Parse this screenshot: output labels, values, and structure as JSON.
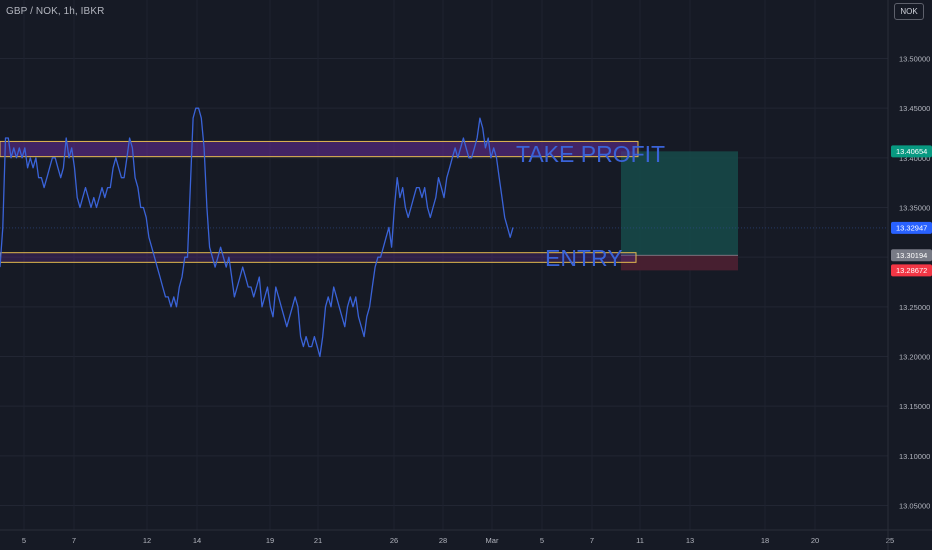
{
  "header": {
    "symbol": "GBP / NOK, 1h, IBKR",
    "currency": "NOK"
  },
  "colors": {
    "background": "#161a25",
    "price_line": "#3a63d8",
    "zone_border": "#e2b94f",
    "zone_fill": "#5a2a85",
    "profit_fill": "#164b4a",
    "loss_fill": "#4a2030",
    "tag_green": "#089981",
    "tag_blue": "#2962ff",
    "tag_gray": "#787b86",
    "tag_red": "#f23645"
  },
  "chart_data": {
    "type": "line",
    "series": [
      {
        "values": [
          13.29,
          13.33,
          13.42,
          13.42,
          13.4,
          13.41,
          13.4,
          13.41,
          13.4,
          13.41,
          13.39,
          13.4,
          13.39,
          13.4,
          13.38,
          13.38,
          13.37,
          13.38,
          13.39,
          13.4,
          13.4,
          13.39,
          13.38,
          13.39,
          13.42,
          13.4,
          13.41,
          13.39,
          13.36,
          13.35,
          13.36,
          13.37,
          13.36,
          13.35,
          13.36,
          13.35,
          13.36,
          13.37,
          13.36,
          13.37,
          13.37,
          13.39,
          13.4,
          13.39,
          13.38,
          13.38,
          13.4,
          13.42,
          13.41,
          13.38,
          13.37,
          13.35,
          13.35,
          13.34,
          13.32,
          13.31,
          13.3,
          13.29,
          13.28,
          13.27,
          13.26,
          13.26,
          13.25,
          13.26,
          13.25,
          13.27,
          13.28,
          13.3,
          13.3,
          13.37,
          13.44,
          13.45,
          13.45,
          13.44,
          13.41,
          13.35,
          13.31,
          13.3,
          13.29,
          13.3,
          13.31,
          13.3,
          13.29,
          13.3,
          13.28,
          13.26,
          13.27,
          13.28,
          13.29,
          13.28,
          13.27,
          13.27,
          13.26,
          13.27,
          13.28,
          13.25,
          13.26,
          13.27,
          13.25,
          13.24,
          13.27,
          13.26,
          13.25,
          13.24,
          13.23,
          13.24,
          13.25,
          13.26,
          13.25,
          13.22,
          13.21,
          13.22,
          13.21,
          13.21,
          13.22,
          13.21,
          13.2,
          13.22,
          13.25,
          13.26,
          13.25,
          13.27,
          13.26,
          13.25,
          13.24,
          13.23,
          13.25,
          13.26,
          13.25,
          13.26,
          13.24,
          13.23,
          13.22,
          13.24,
          13.25,
          13.27,
          13.29,
          13.3,
          13.3,
          13.31,
          13.32,
          13.33,
          13.31,
          13.35,
          13.38,
          13.36,
          13.37,
          13.35,
          13.34,
          13.35,
          13.36,
          13.37,
          13.37,
          13.36,
          13.37,
          13.35,
          13.34,
          13.35,
          13.36,
          13.38,
          13.37,
          13.36,
          13.38,
          13.39,
          13.4,
          13.41,
          13.4,
          13.41,
          13.42,
          13.41,
          13.4,
          13.4,
          13.41,
          13.42,
          13.44,
          13.43,
          13.41,
          13.42,
          13.4,
          13.41,
          13.4,
          13.38,
          13.36,
          13.34,
          13.33,
          13.32,
          13.33
        ]
      }
    ],
    "x_ticks": [
      "5",
      "7",
      "12",
      "14",
      "19",
      "21",
      "26",
      "28",
      "Mar",
      "5",
      "7",
      "11",
      "13",
      "18",
      "20",
      "25"
    ],
    "y_ticks": [
      "13.50000",
      "13.45000",
      "13.40000",
      "13.35000",
      "13.30000",
      "13.25000",
      "13.20000",
      "13.15000",
      "13.10000",
      "13.05000"
    ],
    "ylim": [
      13.025,
      13.525
    ],
    "grid": true,
    "zones": [
      {
        "low": 13.4012,
        "high": 13.4165
      },
      {
        "low": 13.2948,
        "high": 13.3045
      }
    ],
    "annotations": {
      "take_profit": "TAKE PROFIT",
      "entry": "ENTRY"
    },
    "position": {
      "target": 13.40654,
      "entry": 13.30194,
      "stop": 13.28672
    },
    "price_tags": [
      {
        "label": "13.40654",
        "value": 13.40654,
        "color_key": "tag_green"
      },
      {
        "label": "13.32947",
        "value": 13.32947,
        "color_key": "tag_blue"
      },
      {
        "label": "13.30194",
        "value": 13.30194,
        "color_key": "tag_gray"
      },
      {
        "label": "13.28672",
        "value": 13.28672,
        "color_key": "tag_red"
      }
    ]
  }
}
